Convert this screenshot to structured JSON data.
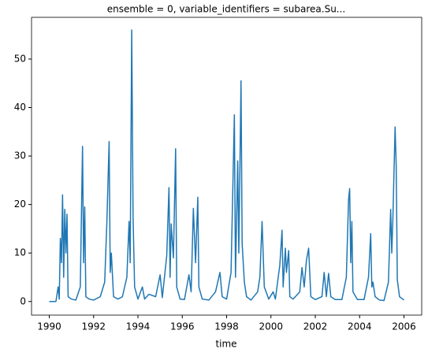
{
  "chart_data": {
    "type": "line",
    "title": "ensemble = 0, variable_identifiers = subarea.Su...",
    "xlabel": "time",
    "x": [
      1990.0,
      1990.3,
      1990.4,
      1990.45,
      1990.5,
      1990.55,
      1990.6,
      1990.65,
      1990.7,
      1990.75,
      1990.8,
      1990.85,
      1991.0,
      1991.2,
      1991.4,
      1991.5,
      1991.55,
      1991.6,
      1991.65,
      1991.8,
      1992.0,
      1992.3,
      1992.5,
      1992.6,
      1992.7,
      1992.75,
      1992.8,
      1992.9,
      1993.1,
      1993.3,
      1993.5,
      1993.6,
      1993.65,
      1993.72,
      1993.78,
      1993.85,
      1994.0,
      1994.2,
      1994.3,
      1994.5,
      1994.8,
      1995.0,
      1995.1,
      1995.3,
      1995.4,
      1995.45,
      1995.5,
      1995.6,
      1995.7,
      1995.75,
      1995.9,
      1996.1,
      1996.3,
      1996.4,
      1996.5,
      1996.6,
      1996.7,
      1996.75,
      1996.9,
      1997.2,
      1997.5,
      1997.7,
      1997.8,
      1998.0,
      1998.2,
      1998.35,
      1998.4,
      1998.5,
      1998.55,
      1998.65,
      1998.7,
      1998.8,
      1998.9,
      1999.1,
      1999.4,
      1999.5,
      1999.6,
      1999.7,
      1999.9,
      2000.1,
      2000.2,
      2000.4,
      2000.5,
      2000.55,
      2000.65,
      2000.7,
      2000.8,
      2000.85,
      2001.0,
      2001.3,
      2001.4,
      2001.5,
      2001.6,
      2001.7,
      2001.8,
      2002.0,
      2002.3,
      2002.4,
      2002.5,
      2002.6,
      2002.7,
      2002.9,
      2003.2,
      2003.4,
      2003.5,
      2003.55,
      2003.6,
      2003.65,
      2003.7,
      2003.9,
      2004.2,
      2004.4,
      2004.5,
      2004.55,
      2004.6,
      2004.7,
      2004.9,
      2005.1,
      2005.3,
      2005.4,
      2005.45,
      2005.5,
      2005.6,
      2005.65,
      2005.7,
      2005.8,
      2006.0
    ],
    "series": [
      {
        "color": "#1f77b4",
        "values": [
          0,
          0,
          3,
          0.5,
          13,
          8,
          22,
          5,
          19,
          10,
          18,
          1,
          0.5,
          0.3,
          3,
          32,
          8,
          19.5,
          1,
          0.5,
          0.3,
          1,
          4,
          16.5,
          33,
          6,
          10,
          1,
          0.5,
          1,
          5,
          16.5,
          8,
          56,
          17.5,
          3,
          0.5,
          3,
          0.5,
          1.5,
          1,
          5.5,
          0.8,
          9.5,
          23.5,
          5,
          16,
          9,
          31.5,
          3,
          0.5,
          0.4,
          5.5,
          2,
          19.2,
          8,
          21.5,
          3,
          0.5,
          0.3,
          2,
          6,
          1,
          0.5,
          6,
          38.5,
          5,
          29,
          10,
          45.5,
          12,
          4,
          1,
          0.3,
          2,
          5,
          16.5,
          3,
          0.5,
          2,
          0.5,
          7.5,
          14.7,
          3,
          11,
          6,
          10.5,
          1,
          0.5,
          2,
          7,
          3,
          8.5,
          11,
          1,
          0.4,
          1,
          6,
          1,
          5.8,
          1,
          0.4,
          0.4,
          5,
          21,
          23.3,
          8,
          16.5,
          2,
          0.4,
          0.4,
          5,
          14,
          3,
          4,
          1,
          0.3,
          0.2,
          4,
          19,
          10,
          17,
          36,
          28,
          4.5,
          1,
          0.3
        ]
      }
    ],
    "xlim": [
      1989.2,
      2006.8
    ],
    "xticks": [
      1990,
      1992,
      1994,
      1996,
      1998,
      2000,
      2002,
      2004,
      2006
    ],
    "ylim": [
      -2.8,
      58.6
    ],
    "yticks": [
      0,
      10,
      20,
      30,
      40,
      50
    ]
  }
}
